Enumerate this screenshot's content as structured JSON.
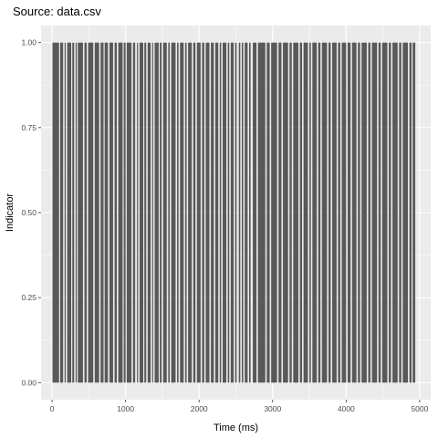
{
  "chart_data": {
    "type": "bar",
    "title": "Source: data.csv",
    "xlabel": "Time (ms)",
    "ylabel": "Indicator",
    "xlim": [
      -150,
      5150
    ],
    "ylim": [
      -0.05,
      1.05
    ],
    "x_ticks": [
      0,
      1000,
      2000,
      3000,
      4000,
      5000
    ],
    "x_tick_labels": [
      "0",
      "1000",
      "2000",
      "3000",
      "4000",
      "5000"
    ],
    "y_ticks": [
      0,
      0.25,
      0.5,
      0.75,
      1.0
    ],
    "y_tick_labels": [
      "0.00",
      "0.25",
      "0.50",
      "0.75",
      "1.00"
    ],
    "grid": true,
    "legend": "none",
    "colors": {
      "panel": "#ebebeb",
      "grid_major": "#ffffff",
      "bar": "#595959"
    },
    "description_note": "Binary indicator series; each event is a narrow bar of height 1.0.",
    "event_intervals": [
      [
        5,
        95
      ],
      [
        110,
        150
      ],
      [
        170,
        185
      ],
      [
        205,
        260
      ],
      [
        275,
        300
      ],
      [
        320,
        335
      ],
      [
        350,
        420
      ],
      [
        440,
        470
      ],
      [
        490,
        560
      ],
      [
        580,
        640
      ],
      [
        660,
        700
      ],
      [
        715,
        760
      ],
      [
        780,
        830
      ],
      [
        850,
        880
      ],
      [
        900,
        960
      ],
      [
        975,
        1000
      ],
      [
        1015,
        1080
      ],
      [
        1100,
        1130
      ],
      [
        1155,
        1170
      ],
      [
        1190,
        1240
      ],
      [
        1255,
        1280
      ],
      [
        1300,
        1340
      ],
      [
        1360,
        1375
      ],
      [
        1395,
        1450
      ],
      [
        1465,
        1490
      ],
      [
        1510,
        1560
      ],
      [
        1580,
        1600
      ],
      [
        1620,
        1680
      ],
      [
        1700,
        1720
      ],
      [
        1740,
        1790
      ],
      [
        1810,
        1830
      ],
      [
        1850,
        1900
      ],
      [
        1920,
        1950
      ],
      [
        1970,
        2020
      ],
      [
        2040,
        2070
      ],
      [
        2090,
        2140
      ],
      [
        2160,
        2200
      ],
      [
        2220,
        2260
      ],
      [
        2280,
        2300
      ],
      [
        2320,
        2370
      ],
      [
        2390,
        2410
      ],
      [
        2430,
        2470
      ],
      [
        2490,
        2510
      ],
      [
        2540,
        2560
      ],
      [
        2580,
        2600
      ],
      [
        2620,
        2660
      ],
      [
        2680,
        2700
      ],
      [
        2730,
        2780
      ],
      [
        2800,
        2900
      ],
      [
        2920,
        2960
      ],
      [
        2980,
        3060
      ],
      [
        3080,
        3120
      ],
      [
        3140,
        3210
      ],
      [
        3230,
        3260
      ],
      [
        3280,
        3350
      ],
      [
        3370,
        3400
      ],
      [
        3420,
        3480
      ],
      [
        3500,
        3520
      ],
      [
        3540,
        3600
      ],
      [
        3620,
        3650
      ],
      [
        3670,
        3740
      ],
      [
        3760,
        3790
      ],
      [
        3810,
        3870
      ],
      [
        3890,
        3920
      ],
      [
        3940,
        4000
      ],
      [
        4020,
        4060
      ],
      [
        4080,
        4140
      ],
      [
        4160,
        4190
      ],
      [
        4210,
        4280
      ],
      [
        4300,
        4330
      ],
      [
        4350,
        4420
      ],
      [
        4440,
        4470
      ],
      [
        4490,
        4560
      ],
      [
        4580,
        4610
      ],
      [
        4630,
        4700
      ],
      [
        4720,
        4750
      ],
      [
        4770,
        4840
      ],
      [
        4860,
        4890
      ],
      [
        4905,
        4940
      ]
    ]
  }
}
